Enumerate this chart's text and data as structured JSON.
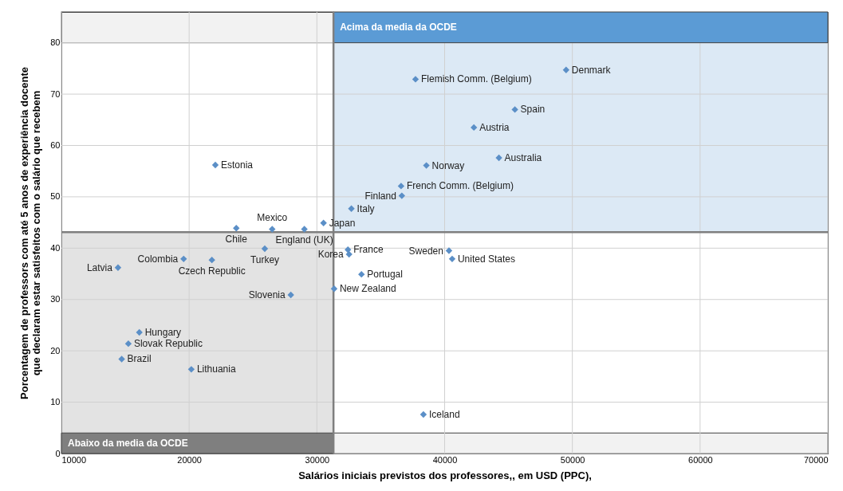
{
  "chart_data": {
    "type": "scatter",
    "xlabel": "Salários iniciais previstos dos professores,, em USD  (PPC),",
    "ylabel": "Porcentagem de professors com até 5 anos de experiência docente\nque declaram estar satisfeitos com o salário que recebem",
    "color": "#5b8fc7",
    "marker": "diamond",
    "grid": true,
    "xlim": [
      10000,
      70000
    ],
    "ylim": [
      0,
      86
    ],
    "xticks": [
      10000,
      20000,
      30000,
      40000,
      50000,
      60000,
      70000
    ],
    "yticks": [
      0,
      10,
      20,
      30,
      40,
      50,
      60,
      70,
      80
    ],
    "x": [
      23690,
      26500,
      29020,
      30520,
      25920,
      19570,
      21780,
      14430,
      27960,
      31350,
      16100,
      15240,
      14720,
      20170,
      22050,
      37720,
      49510,
      45500,
      42290,
      44250,
      38570,
      36590,
      36650,
      32700,
      32430,
      32520,
      33490,
      40340,
      40590,
      38340
    ],
    "values": [
      43.9,
      43.7,
      43.7,
      44.9,
      39.9,
      37.9,
      37.7,
      36.2,
      30.9,
      32.1,
      23.6,
      21.4,
      18.4,
      16.4,
      56.2,
      72.9,
      74.7,
      67.0,
      63.5,
      57.6,
      56.1,
      52.1,
      50.2,
      47.7,
      39.7,
      38.8,
      34.9,
      39.5,
      37.9,
      7.6
    ],
    "ref_lines": [
      {
        "axis": "x",
        "value": 31300,
        "color": "#7f7f7f"
      },
      {
        "axis": "y",
        "value": 43.1,
        "color": "#7f7f7f"
      }
    ],
    "bands": [
      {
        "axis": "y",
        "from": 80,
        "to": 86,
        "label": "Acima da media da OCDE",
        "color": "#5b9bd5"
      },
      {
        "axis": "y",
        "from": 0,
        "to": 4,
        "label": "Abaixo da media da OCDE",
        "color": "#7f7f7f"
      }
    ],
    "annotations": [
      {
        "text": "Chile",
        "x": 23690,
        "y": 43.9
      },
      {
        "text": "Mexico",
        "x": 26500,
        "y": 43.7
      },
      {
        "text": "England (UK)",
        "x": 29020,
        "y": 43.7
      },
      {
        "text": "Japan",
        "x": 30520,
        "y": 44.9
      },
      {
        "text": "Turkey",
        "x": 25920,
        "y": 39.9
      },
      {
        "text": "Colombia",
        "x": 19570,
        "y": 37.9
      },
      {
        "text": "Czech Republic",
        "x": 21780,
        "y": 37.7
      },
      {
        "text": "Latvia",
        "x": 14430,
        "y": 36.2
      },
      {
        "text": "Slovenia",
        "x": 27960,
        "y": 30.9
      },
      {
        "text": "New Zealand",
        "x": 31350,
        "y": 32.1
      },
      {
        "text": "Hungary",
        "x": 16100,
        "y": 23.6
      },
      {
        "text": "Slovak Republic",
        "x": 15240,
        "y": 21.4
      },
      {
        "text": "Brazil",
        "x": 14720,
        "y": 18.4
      },
      {
        "text": "Lithuania",
        "x": 20170,
        "y": 16.4
      },
      {
        "text": "Estonia",
        "x": 22050,
        "y": 56.2
      },
      {
        "text": "Flemish Comm. (Belgium)",
        "x": 37720,
        "y": 72.9
      },
      {
        "text": "Denmark",
        "x": 49510,
        "y": 74.7
      },
      {
        "text": "Spain",
        "x": 45500,
        "y": 67.0
      },
      {
        "text": "Austria",
        "x": 42290,
        "y": 63.5
      },
      {
        "text": "Australia",
        "x": 44250,
        "y": 57.6
      },
      {
        "text": "Norway",
        "x": 38570,
        "y": 56.1
      },
      {
        "text": "French Comm. (Belgium)",
        "x": 36590,
        "y": 52.1
      },
      {
        "text": "Finland",
        "x": 36650,
        "y": 50.2
      },
      {
        "text": "Italy",
        "x": 32700,
        "y": 47.7
      },
      {
        "text": "France",
        "x": 32430,
        "y": 39.7
      },
      {
        "text": "Korea",
        "x": 32520,
        "y": 38.8
      },
      {
        "text": "Portugal",
        "x": 33490,
        "y": 34.9
      },
      {
        "text": "Sweden",
        "x": 40340,
        "y": 39.5
      },
      {
        "text": "United States",
        "x": 40590,
        "y": 37.9
      },
      {
        "text": "Iceland",
        "x": 38340,
        "y": 7.6
      }
    ]
  }
}
